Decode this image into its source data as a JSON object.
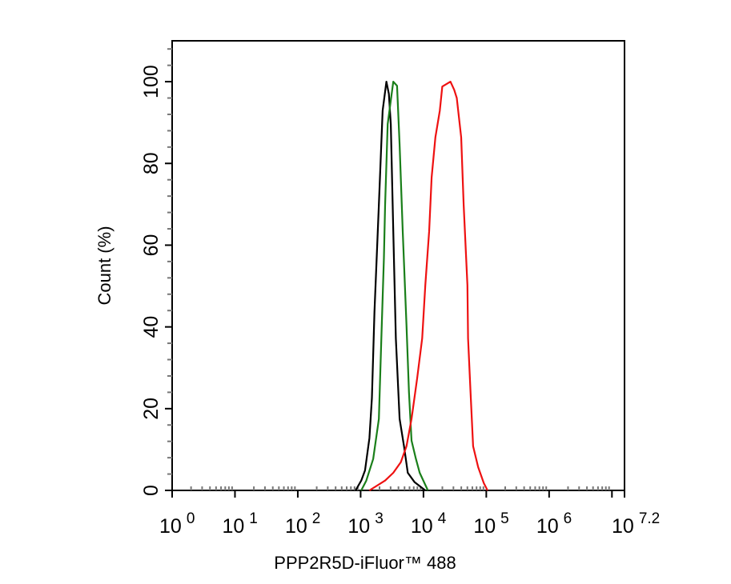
{
  "chart_data": {
    "type": "line",
    "title": "",
    "xlabel": "PPP2R5D-iFluor™ 488",
    "ylabel": "Count  (%)",
    "x_scale": "log",
    "xlim_log10": [
      0,
      7.2
    ],
    "ylim": [
      0,
      110
    ],
    "x_tick_labels": [
      {
        "base": "10",
        "exp": "0"
      },
      {
        "base": "10",
        "exp": "1"
      },
      {
        "base": "10",
        "exp": "2"
      },
      {
        "base": "10",
        "exp": "3"
      },
      {
        "base": "10",
        "exp": "4"
      },
      {
        "base": "10",
        "exp": "5"
      },
      {
        "base": "10",
        "exp": "6"
      },
      {
        "base": "10",
        "exp": "7.2"
      }
    ],
    "y_ticks": [
      "0",
      "20",
      "40",
      "60",
      "80",
      "100"
    ],
    "grid": false,
    "legend": "none",
    "series": [
      {
        "color": "#000000",
        "log10_x": [
          2.92,
          3.01,
          3.07,
          3.14,
          3.18,
          3.22,
          3.29,
          3.35,
          3.41,
          3.45,
          3.48,
          3.52,
          3.56,
          3.62,
          3.69,
          3.75,
          3.86,
          4.03
        ],
        "y": [
          0,
          2.4,
          4.9,
          12.8,
          22.6,
          43.7,
          69.9,
          92.9,
          100,
          97,
          89.6,
          63.4,
          37.2,
          17.5,
          10.8,
          4.3,
          2,
          0
        ]
      },
      {
        "color": "#1a7f1a",
        "log10_x": [
          3.01,
          3.09,
          3.2,
          3.29,
          3.33,
          3.37,
          3.39,
          3.43,
          3.52,
          3.58,
          3.62,
          3.67,
          3.73,
          3.77,
          3.81,
          3.88,
          3.94,
          4.07
        ],
        "y": [
          0,
          2.4,
          7.7,
          17.5,
          37.2,
          56.9,
          69.9,
          89.6,
          100,
          99,
          84.6,
          63.4,
          40.4,
          24.0,
          12.2,
          7.7,
          4.3,
          0
        ]
      },
      {
        "color": "#ee1111",
        "log10_x": [
          3.14,
          3.39,
          3.52,
          3.64,
          3.73,
          3.81,
          3.9,
          3.98,
          4.03,
          4.09,
          4.13,
          4.19,
          4.26,
          4.3,
          4.43,
          4.49,
          4.53,
          4.6,
          4.64,
          4.7,
          4.71,
          4.75,
          4.79,
          4.87,
          4.96,
          5.02
        ],
        "y": [
          0,
          2.4,
          4.3,
          6.9,
          10.8,
          17.5,
          27.4,
          37.2,
          50.2,
          63.4,
          76.6,
          86.4,
          92.9,
          98.8,
          100,
          98,
          96,
          86.4,
          69.9,
          50.2,
          37.2,
          24.0,
          10.8,
          5.7,
          1.8,
          0
        ]
      }
    ]
  }
}
